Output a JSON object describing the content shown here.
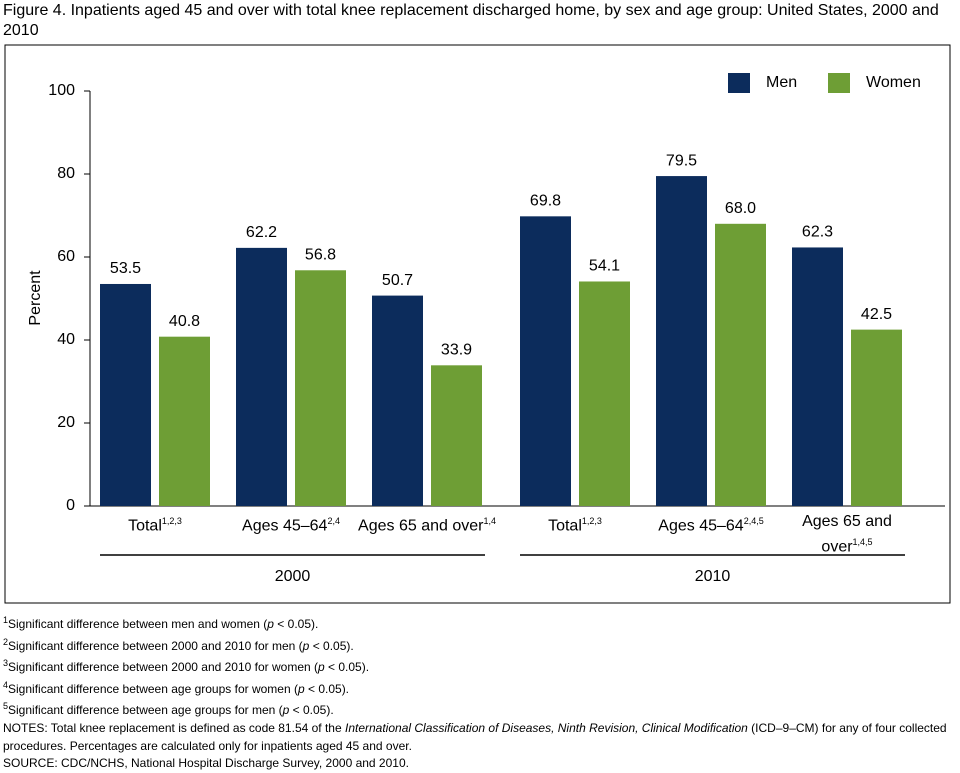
{
  "chart_data": {
    "type": "bar",
    "title": "Figure 4. Inpatients aged 45 and over with total knee replacement discharged home, by sex and age group: United States, 2000 and 2010",
    "y_label": "Percent",
    "categories": [
      "Total",
      "Ages 45–64",
      "Ages 65 and over",
      "Total",
      "Ages 45–64",
      "Ages 65 and over"
    ],
    "category_notes": [
      "1,2,3",
      "2,4",
      "1,4",
      "1,2,3",
      "2,4,5",
      "1,4,5"
    ],
    "groups": [
      "2000",
      "2010"
    ],
    "series": [
      {
        "name": "Men",
        "color": "#0c2c5c",
        "values": [
          53.5,
          62.2,
          50.7,
          69.8,
          79.5,
          62.3
        ],
        "value_labels": [
          "53.5",
          "62.2",
          "50.7",
          "69.8",
          "79.5",
          "62.3"
        ]
      },
      {
        "name": "Women",
        "color": "#6e9e35",
        "values": [
          40.8,
          56.8,
          33.9,
          54.1,
          68.0,
          42.5
        ],
        "value_labels": [
          "40.8",
          "56.8",
          "33.9",
          "54.1",
          "68.0",
          "42.5"
        ]
      }
    ],
    "ylim": [
      0,
      100
    ],
    "yticks": [
      0,
      20,
      40,
      60,
      80,
      100
    ],
    "legend": "top-right"
  },
  "footnotes": [
    {
      "mark": "1",
      "parts": [
        "Significant difference between men and women (",
        "p",
        " < 0.05)."
      ]
    },
    {
      "mark": "2",
      "parts": [
        "Significant difference between 2000 and 2010 for men (",
        "p",
        " < 0.05)."
      ]
    },
    {
      "mark": "3",
      "parts": [
        "Significant difference between 2000 and 2010 for women (",
        "p",
        " < 0.05)."
      ]
    },
    {
      "mark": "4",
      "parts": [
        "Significant difference between age groups for women (",
        "p",
        " < 0.05)."
      ]
    },
    {
      "mark": "5",
      "parts": [
        "Significant difference between age groups for men (",
        "p",
        " < 0.05)."
      ]
    }
  ],
  "notes": [
    "NOTES: Total knee replacement is defined as code 81.54 of the ",
    "International Classification of Diseases, Ninth Revision, Clinical Modification",
    " (ICD–9–CM) for any of four collected procedures. Percentages are calculated only for inpatients aged 45 and over."
  ],
  "source": "SOURCE: CDC/NCHS, National Hospital Discharge Survey, 2000 and 2010."
}
